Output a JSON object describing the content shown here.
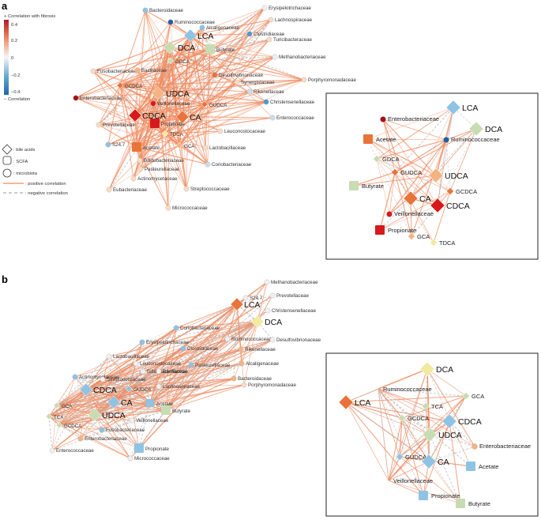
{
  "panels": [
    {
      "letter": "a"
    },
    {
      "letter": "b"
    }
  ],
  "legend": {
    "colorbar_title": "+ Correlation with fibrosis",
    "ticks": [
      "0.4",
      "0.2",
      "0",
      "−0.2",
      "−0.4"
    ],
    "colorbar_bottom": "− Correlation",
    "shapes": [
      {
        "icon": "diamond",
        "text": ": bile acids"
      },
      {
        "icon": "rounded-square",
        "text": ": SCFA"
      },
      {
        "icon": "circle",
        "text": ": microbiota"
      }
    ],
    "lines": [
      {
        "style": "solid-orange",
        "text": ": positive correlation"
      },
      {
        "style": "dashed-gray",
        "text": ": negative correlation"
      }
    ]
  },
  "colors": {
    "pos_edge": "#f08a5d",
    "neg_edge": "#bdbdbd",
    "strong_red": "#c0262d",
    "orange": "#e8743b",
    "light_orange": "#f4b482",
    "pale_orange": "#f9dcc4",
    "neutral": "#f0f0f0",
    "pale_blue": "#c9dff0",
    "light_blue": "#8fc3e3",
    "blue": "#4a9bd1",
    "dark_blue": "#1f5fa8",
    "green": "#c8dcb3",
    "yellow": "#f2eaa0",
    "dark_red": "#a50f15",
    "red": "#d7191c"
  },
  "panel_a_nodes": [
    {
      "id": "Bacteroidaceae",
      "label": "Bacteroidaceae"
    },
    {
      "id": "Erysipelotrichaceae",
      "label": "Erysipelotrichaceae"
    },
    {
      "id": "Ruminococcaceae",
      "label": "Ruminococcaceae"
    },
    {
      "id": "Lachnospiraceae",
      "label": "Lachnospiraceae"
    },
    {
      "id": "Alcaligenaceae",
      "label": "Alcaligenaceae"
    },
    {
      "id": "Clostridiaceae",
      "label": "Clostridiaceae"
    },
    {
      "id": "LCA",
      "label": "LCA"
    },
    {
      "id": "Turicibacteraceae",
      "label": "Turicibacteraceae"
    },
    {
      "id": "DCA",
      "label": "DCA"
    },
    {
      "id": "Butyrate",
      "label": "Butyrate"
    },
    {
      "id": "GDCA",
      "label": "GDCA"
    },
    {
      "id": "Methanobacteriaceae",
      "label": "Methanobacteriaceae"
    },
    {
      "id": "Fusobacteriaceae",
      "label": "Fusobacteriaceae"
    },
    {
      "id": "Bacillaceae",
      "label": "Bacillaceae"
    },
    {
      "id": "Desulfovibrionaceae",
      "label": "Desulfovibrionaceae"
    },
    {
      "id": "GCDCA",
      "label": "GCDCA"
    },
    {
      "id": "Synergistaceae",
      "label": "Synergistaceae"
    },
    {
      "id": "Porphyromonadaceae",
      "label": "Porphyromonadaceae"
    },
    {
      "id": "UDCA",
      "label": "UDCA"
    },
    {
      "id": "Rikenellaceae",
      "label": "Rikenellaceae"
    },
    {
      "id": "Enterobacteriaceae",
      "label": "Enterobacteriaceae"
    },
    {
      "id": "Veillonellaceae",
      "label": "Veillonellaceae"
    },
    {
      "id": "GUDCA",
      "label": "GUDCA"
    },
    {
      "id": "Christensenellaceae",
      "label": "Christensenellaceae"
    },
    {
      "id": "CDCA",
      "label": "CDCA"
    },
    {
      "id": "CA",
      "label": "CA"
    },
    {
      "id": "Enterococcaceae",
      "label": "Enterococcaceae"
    },
    {
      "id": "Prevotellaceae",
      "label": "Prevotellaceae"
    },
    {
      "id": "Propionate",
      "label": "Propionate"
    },
    {
      "id": "Leuconostocaceae",
      "label": "Leuconostocaceae"
    },
    {
      "id": "TDCA",
      "label": "TDCA"
    },
    {
      "id": "S24.7",
      "label": "S24.7"
    },
    {
      "id": "Acetate",
      "label": "Acetate"
    },
    {
      "id": "GCA",
      "label": "GCA"
    },
    {
      "id": "Lactobacillaceae",
      "label": "Lactobacillaceae"
    },
    {
      "id": "Bifidobacteriaceae",
      "label": "Bifidobacteriaceae"
    },
    {
      "id": "Coriobacteriaceae",
      "label": "Coriobacteriaceae"
    },
    {
      "id": "Pasteurellaceae",
      "label": "Pasteurellaceae"
    },
    {
      "id": "Actinomycetaceae",
      "label": "Actinomycetaceae"
    },
    {
      "id": "Eubacteriaceae",
      "label": "Eubacteriaceae"
    },
    {
      "id": "Streptococcaceae",
      "label": "Streptococcaceae"
    },
    {
      "id": "Micrococcaceae",
      "label": "Micrococcaceae"
    }
  ],
  "panel_a_inset_nodes": [
    {
      "id": "LCA",
      "label": "LCA"
    },
    {
      "id": "Enterobacteriaceae",
      "label": "Enterobacteriaceae"
    },
    {
      "id": "DCA",
      "label": "DCA"
    },
    {
      "id": "Acetate",
      "label": "Acetate"
    },
    {
      "id": "Ruminococcaceae",
      "label": "Ruminococcaceae"
    },
    {
      "id": "GDCA",
      "label": "GDCA"
    },
    {
      "id": "GUDCA",
      "label": "GUDCA"
    },
    {
      "id": "UDCA",
      "label": "UDCA"
    },
    {
      "id": "Butyrate",
      "label": "Butyrate"
    },
    {
      "id": "GCDCA",
      "label": "GCDCA"
    },
    {
      "id": "CA",
      "label": "CA"
    },
    {
      "id": "CDCA",
      "label": "CDCA"
    },
    {
      "id": "Veillonellaceae",
      "label": "Veillonellaceae"
    },
    {
      "id": "Propionate",
      "label": "Propionate"
    },
    {
      "id": "GCA",
      "label": "GCA"
    },
    {
      "id": "TDCA",
      "label": "TDCA"
    }
  ],
  "panel_b_nodes": [
    {
      "id": "Methanobacteriaceae",
      "label": "Methanobacteriaceae"
    },
    {
      "id": "LCA",
      "label": "LCA"
    },
    {
      "id": "S24.7",
      "label": "S24.7"
    },
    {
      "id": "Prevotellaceae",
      "label": "Prevotellaceae"
    },
    {
      "id": "DCA",
      "label": "DCA"
    },
    {
      "id": "Christensenellaceae",
      "label": "Christensenellaceae"
    },
    {
      "id": "Coriobacteriaceae",
      "label": "Coriobacteriaceae"
    },
    {
      "id": "Ruminococcaceae",
      "label": "Ruminococcaceae"
    },
    {
      "id": "Desulfovibrionaceae",
      "label": "Desulfovibrionaceae"
    },
    {
      "id": "Erysipelotrichaceae",
      "label": "Erysipelotrichaceae"
    },
    {
      "id": "Clostridiaceae",
      "label": "Clostridiaceae"
    },
    {
      "id": "Rikenellaceae",
      "label": "Rikenellaceae"
    },
    {
      "id": "Lactobacillaceae",
      "label": "Lactobacillaceae"
    },
    {
      "id": "Leuconostocaceae",
      "label": "Leuconostocaceae"
    },
    {
      "id": "Pasteurellaceae",
      "label": "Pasteurellaceae"
    },
    {
      "id": "Alcaligenaceae",
      "label": "Alcaligenaceae"
    },
    {
      "id": "Bifidobacteriaceae",
      "label": "Bifidobacteriaceae"
    },
    {
      "id": "Bacillaceae",
      "label": "Bacillaceae"
    },
    {
      "id": "Actinomycetaceae",
      "label": "Actinomycetaceae"
    },
    {
      "id": "Bacteroidaceae",
      "label": "Bacteroidaceae"
    },
    {
      "id": "Streptococcaceae",
      "label": "Streptococcaceae"
    },
    {
      "id": "CDCA",
      "label": "CDCA"
    },
    {
      "id": "Lachnospiraceae",
      "label": "Lachnospiraceae"
    },
    {
      "id": "GUDCA",
      "label": "GUDCA"
    },
    {
      "id": "Porphyromonadaceae",
      "label": "Porphyromonadaceae"
    },
    {
      "id": "CA",
      "label": "CA"
    },
    {
      "id": "Acetate",
      "label": "Acetate"
    },
    {
      "id": "GCA",
      "label": "GCA"
    },
    {
      "id": "UDCA",
      "label": "UDCA"
    },
    {
      "id": "Butyrate",
      "label": "Butyrate"
    },
    {
      "id": "TCA",
      "label": "TCA"
    },
    {
      "id": "Veillonellaceae",
      "label": "Veillonellaceae"
    },
    {
      "id": "GCDCA",
      "label": "GCDCA"
    },
    {
      "id": "Fusobacteriaceae",
      "label": "Fusobacteriaceae"
    },
    {
      "id": "Enterobacteriaceae",
      "label": "Enterobacteriaceae"
    },
    {
      "id": "Propionate",
      "label": "Propionate"
    },
    {
      "id": "Enterococcaceae",
      "label": "Enterococcaceae"
    },
    {
      "id": "Micrococcaceae",
      "label": "Micrococcaceae"
    }
  ],
  "panel_b_inset_nodes": [
    {
      "id": "DCA",
      "label": "DCA"
    },
    {
      "id": "Ruminococcaceae",
      "label": "Ruminococcaceae"
    },
    {
      "id": "GCA",
      "label": "GCA"
    },
    {
      "id": "LCA",
      "label": "LCA"
    },
    {
      "id": "TCA",
      "label": "TCA"
    },
    {
      "id": "GCDCA",
      "label": "GCDCA"
    },
    {
      "id": "CDCA",
      "label": "CDCA"
    },
    {
      "id": "UDCA",
      "label": "UDCA"
    },
    {
      "id": "Enterobacteriaceae",
      "label": "Enterobacteriaceae"
    },
    {
      "id": "GUDCA",
      "label": "GUDCA"
    },
    {
      "id": "CA",
      "label": "CA"
    },
    {
      "id": "Acetate",
      "label": "Acetate"
    },
    {
      "id": "Veillonellaceae",
      "label": "Veillonellaceae"
    },
    {
      "id": "Propionate",
      "label": "Propionate"
    },
    {
      "id": "Butyrate",
      "label": "Butyrate"
    }
  ]
}
